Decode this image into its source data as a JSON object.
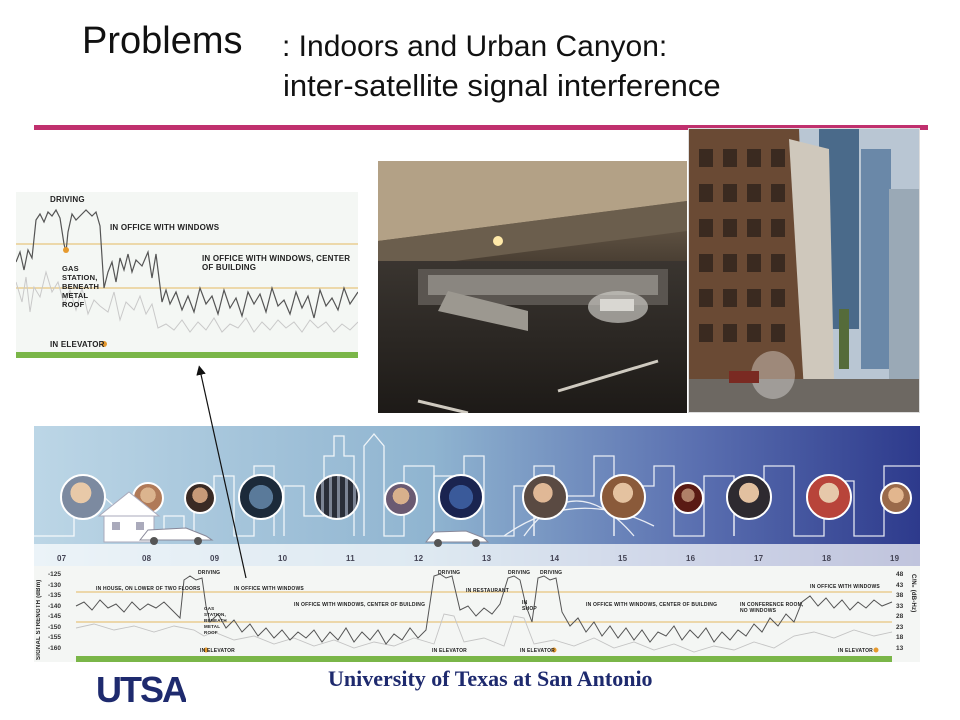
{
  "slide": {
    "title_prefix": "Problems",
    "title_line1": ": Indoors and Urban Canyon:",
    "title_line2": "inter-satellite signal interference",
    "footer": "University of Texas at San Antonio",
    "logo_text": "UTSA",
    "accent_color": "#c0306e",
    "footer_color": "#1e2a6e"
  },
  "inset_chart": {
    "labels": {
      "driving": "DRIVING",
      "office_windows": "IN OFFICE WITH WINDOWS",
      "office_center": "IN OFFICE WITH WINDOWS, CENTER OF BUILDING",
      "gas_station": [
        "GAS",
        "STATION,",
        "BENEATH",
        "METAL",
        "ROOF"
      ],
      "elevator": "IN ELEVATOR"
    }
  },
  "timeline": {
    "hours": [
      "07",
      "08",
      "09",
      "10",
      "11",
      "12",
      "13",
      "14",
      "15",
      "16",
      "17",
      "18",
      "19"
    ]
  },
  "bottom_chart": {
    "left_axis_label": "SIGNAL STRENGTH (dBm)",
    "right_axis_label": "C/N₀ (dB-Hz)",
    "left_ticks": [
      "-125",
      "-130",
      "-135",
      "-140",
      "-145",
      "-150",
      "-155",
      "-160"
    ],
    "right_ticks": [
      "48",
      "43",
      "38",
      "33",
      "28",
      "23",
      "18",
      "13"
    ],
    "labels": {
      "house": "IN HOUSE, ON LOWER OF TWO FLOORS",
      "driving1": "DRIVING",
      "gas": [
        "GAS",
        "STATION,",
        "BENEATH",
        "METAL",
        "ROOF"
      ],
      "office1": "IN OFFICE WITH WINDOWS",
      "office_center1": "IN OFFICE WITH WINDOWS, CENTER OF BUILDING",
      "driving2": "DRIVING",
      "restaurant": "IN RESTAURANT",
      "driving3": "DRIVING",
      "shop": [
        "IN",
        "SHOP"
      ],
      "driving4": "DRIVING",
      "office_center2": "IN OFFICE WITH WINDOWS, CENTER OF BUILDING",
      "conference": [
        "IN CONFERENCE ROOM,",
        "NO WINDOWS"
      ],
      "office2": "IN OFFICE WITH WINDOWS",
      "elevator1": "IN ELEVATOR",
      "elevator2": "IN ELEVATOR",
      "elevator3": "IN ELEVATOR",
      "elevator4": "IN ELEVATOR"
    }
  }
}
